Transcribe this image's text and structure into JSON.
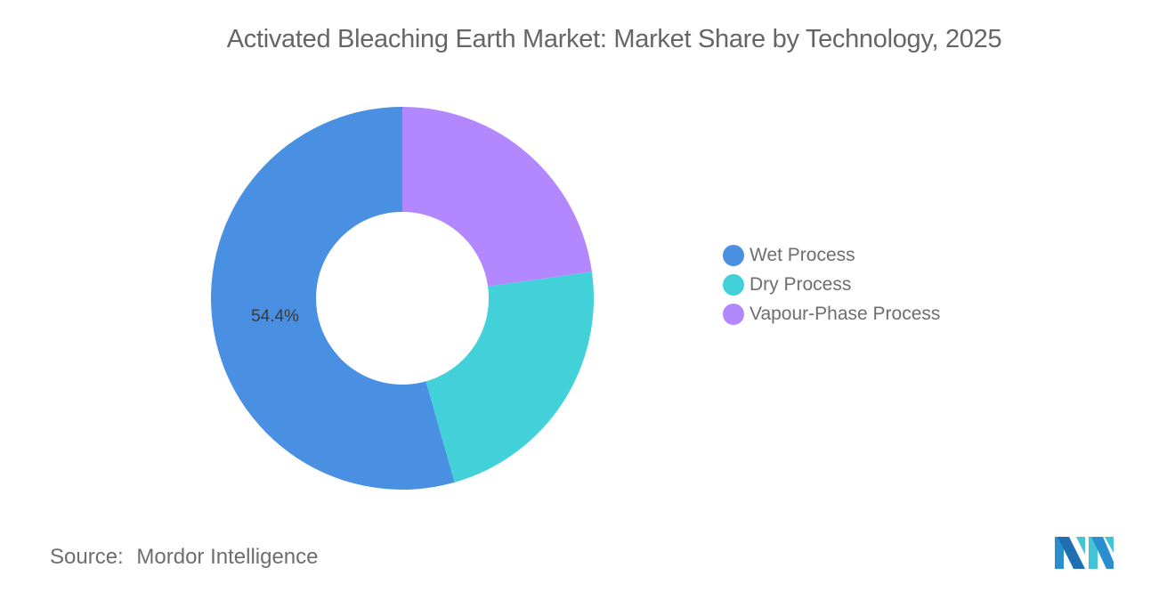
{
  "title": "Activated Bleaching Earth Market: Market Share by Technology, 2025",
  "source": {
    "label": "Source:",
    "value": "Mordor Intelligence"
  },
  "legend": [
    {
      "label": "Wet Process",
      "color": "#4a90e2"
    },
    {
      "label": "Dry Process",
      "color": "#42d0d9"
    },
    {
      "label": "Vapour-Phase Process",
      "color": "#b388ff"
    }
  ],
  "data_label": "54.4%",
  "chart_data": {
    "type": "pie",
    "variant": "donut",
    "title": "Activated Bleaching Earth Market: Market Share by Technology, 2025",
    "categories": [
      "Wet Process",
      "Dry Process",
      "Vapour-Phase Process"
    ],
    "values": [
      54.4,
      22.8,
      22.8
    ],
    "colors": [
      "#4a90e2",
      "#42d0d9",
      "#b388ff"
    ],
    "labels_shown": {
      "Wet Process": "54.4%"
    },
    "legend_position": "right",
    "unit": "%"
  }
}
